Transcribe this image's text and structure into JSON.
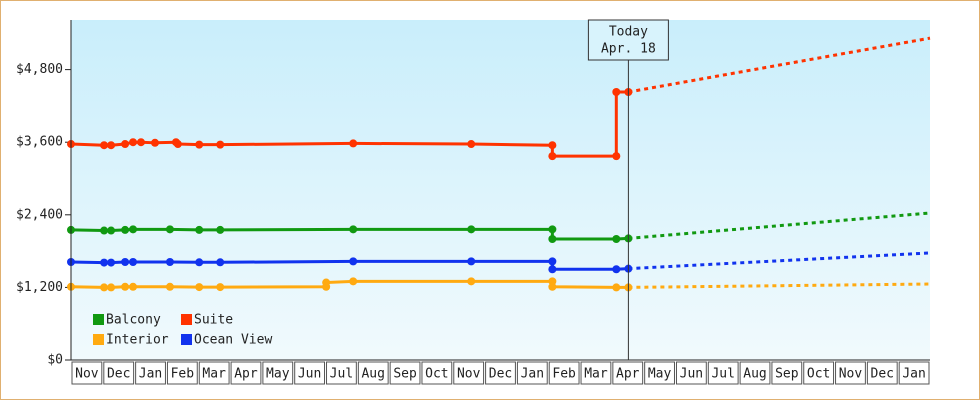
{
  "chart_data": {
    "type": "line",
    "xlim": [
      0,
      27
    ],
    "ylim": [
      0,
      5620
    ],
    "xticks": [
      {
        "value": 0,
        "label": "Nov"
      },
      {
        "value": 1,
        "label": "Dec"
      },
      {
        "value": 2,
        "label": "Jan"
      },
      {
        "value": 3,
        "label": "Feb"
      },
      {
        "value": 4,
        "label": "Mar"
      },
      {
        "value": 5,
        "label": "Apr"
      },
      {
        "value": 6,
        "label": "May"
      },
      {
        "value": 7,
        "label": "Jun"
      },
      {
        "value": 8,
        "label": "Jul"
      },
      {
        "value": 9,
        "label": "Aug"
      },
      {
        "value": 10,
        "label": "Sep"
      },
      {
        "value": 11,
        "label": "Oct"
      },
      {
        "value": 12,
        "label": "Nov"
      },
      {
        "value": 13,
        "label": "Dec"
      },
      {
        "value": 14,
        "label": "Jan"
      },
      {
        "value": 15,
        "label": "Feb"
      },
      {
        "value": 16,
        "label": "Mar"
      },
      {
        "value": 17,
        "label": "Apr"
      },
      {
        "value": 18,
        "label": "May"
      },
      {
        "value": 19,
        "label": "Jun"
      },
      {
        "value": 20,
        "label": "Jul"
      },
      {
        "value": 21,
        "label": "Aug"
      },
      {
        "value": 22,
        "label": "Sep"
      },
      {
        "value": 23,
        "label": "Oct"
      },
      {
        "value": 24,
        "label": "Nov"
      },
      {
        "value": 25,
        "label": "Dec"
      },
      {
        "value": 26,
        "label": "Jan"
      }
    ],
    "yticks": [
      {
        "value": 0,
        "label": "$0"
      },
      {
        "value": 1200,
        "label": "$1,200"
      },
      {
        "value": 2400,
        "label": "$2,400"
      },
      {
        "value": 3600,
        "label": "$3,600"
      },
      {
        "value": 4800,
        "label": "$4,800"
      }
    ],
    "today": {
      "x": 17.52,
      "label": [
        "Today",
        "Apr. 18"
      ]
    },
    "series": [
      {
        "name": "Balcony",
        "color": "#119911",
        "x": [
          0,
          1.04,
          1.26,
          1.7,
          1.95,
          3.11,
          4.03,
          4.69,
          8.87,
          12.58,
          15.13,
          15.13,
          17.14,
          17.52
        ],
        "values": [
          2150,
          2140,
          2140,
          2150,
          2160,
          2160,
          2150,
          2150,
          2160,
          2160,
          2160,
          2000,
          2000,
          2010
        ],
        "forecast_x": [
          17.52,
          27
        ],
        "forecast_values": [
          2010,
          2430
        ]
      },
      {
        "name": "Suite",
        "color": "#ff3300",
        "x": [
          0,
          1.04,
          1.26,
          1.7,
          1.95,
          2.2,
          2.64,
          3.3,
          3.36,
          4.03,
          4.69,
          8.87,
          12.58,
          15.13,
          15.13,
          17.14,
          17.14,
          17.52
        ],
        "values": [
          3570,
          3550,
          3550,
          3570,
          3600,
          3600,
          3590,
          3600,
          3570,
          3560,
          3560,
          3580,
          3570,
          3550,
          3370,
          3370,
          4430,
          4430
        ],
        "forecast_x": [
          17.52,
          27
        ],
        "forecast_values": [
          4430,
          5320
        ]
      },
      {
        "name": "Interior",
        "color": "#ffaa11",
        "x": [
          0,
          1.04,
          1.26,
          1.7,
          1.95,
          3.11,
          4.03,
          4.69,
          8.02,
          8.02,
          8.87,
          12.58,
          15.13,
          15.13,
          17.14,
          17.52
        ],
        "values": [
          1210,
          1200,
          1200,
          1210,
          1210,
          1210,
          1205,
          1205,
          1210,
          1280,
          1300,
          1300,
          1300,
          1210,
          1200,
          1200
        ],
        "forecast_x": [
          17.52,
          27
        ],
        "forecast_values": [
          1200,
          1256
        ]
      },
      {
        "name": "Ocean View",
        "color": "#1133ee",
        "x": [
          0,
          1.04,
          1.26,
          1.7,
          1.95,
          3.11,
          4.03,
          4.69,
          8.87,
          12.58,
          15.13,
          15.13,
          17.14,
          17.52
        ],
        "values": [
          1620,
          1610,
          1610,
          1620,
          1620,
          1620,
          1615,
          1615,
          1630,
          1630,
          1630,
          1500,
          1500,
          1510
        ],
        "forecast_x": [
          17.52,
          27
        ],
        "forecast_values": [
          1510,
          1770
        ]
      }
    ],
    "legend": "lower left"
  }
}
